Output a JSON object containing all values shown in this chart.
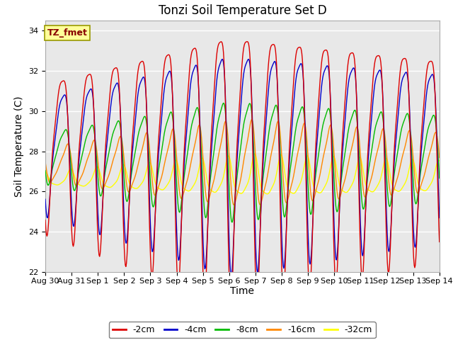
{
  "title": "Tonzi Soil Temperature Set D",
  "xlabel": "Time",
  "ylabel": "Soil Temperature (C)",
  "ylim": [
    22,
    34.5
  ],
  "yticks": [
    22,
    24,
    26,
    28,
    30,
    32,
    34
  ],
  "x_tick_labels": [
    "Aug 30",
    "Aug 31",
    "Sep 1",
    "Sep 2",
    "Sep 3",
    "Sep 4",
    "Sep 5",
    "Sep 6",
    "Sep 7",
    "Sep 8",
    "Sep 9",
    "Sep 10",
    "Sep 11",
    "Sep 12",
    "Sep 13",
    "Sep 14"
  ],
  "annotation_text": "TZ_fmet",
  "annotation_box_color": "#ffff99",
  "annotation_text_color": "#880000",
  "line_colors": {
    "-2cm": "#dd0000",
    "-4cm": "#0000cc",
    "-8cm": "#00bb00",
    "-16cm": "#ff8800",
    "-32cm": "#ffff00"
  },
  "legend_labels": [
    "-2cm",
    "-4cm",
    "-8cm",
    "-16cm",
    "-32cm"
  ],
  "background_color": "#e8e8e8",
  "fig_background": "#ffffff",
  "grid_color": "#ffffff",
  "title_fontsize": 12,
  "axis_fontsize": 10,
  "tick_fontsize": 8,
  "legend_fontsize": 9
}
